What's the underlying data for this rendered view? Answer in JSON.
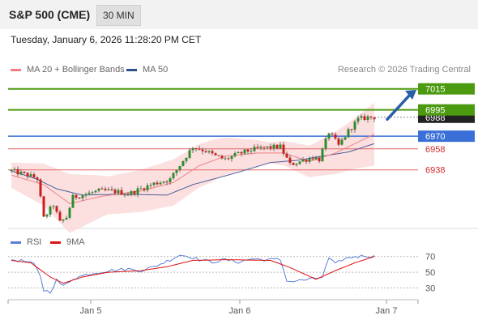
{
  "header": {
    "title": "S&P 500 (CME)",
    "interval": "30 MIN"
  },
  "timestamp": "Tuesday, January 6, 2026 11:28:20 PM CET",
  "legend": {
    "ma20": {
      "label": "MA 20 + Bollinger Bands",
      "color": "#f08080"
    },
    "ma50": {
      "label": "MA 50",
      "color": "#2f4f8f"
    }
  },
  "credit": "Research © 2026 Trading Central",
  "colors": {
    "up": "#2e8b2e",
    "down": "#cc1f1f",
    "resistance": "#4c9a10",
    "pivot": "#3a6fd8",
    "support": "#e06666",
    "band_fill": "#fbd5d5",
    "last_price_bg": "#222222",
    "arrow": "#2a5fa8",
    "rsi": "#5b7fd8",
    "rsi_ma": "#dd1111"
  },
  "chart_data": {
    "type": "candlestick",
    "x_labels": [
      "Jan 5",
      "Jan 6",
      "Jan 7"
    ],
    "ylim": [
      6887,
      7024
    ],
    "levels": [
      {
        "value": 7015,
        "label": "7015",
        "type": "resistance"
      },
      {
        "value": 6995,
        "label": "6995",
        "type": "resistance"
      },
      {
        "value": 6970,
        "label": "6970",
        "type": "pivot"
      },
      {
        "value": 6958,
        "label": "6958",
        "type": "support"
      },
      {
        "value": 6938,
        "label": "6938",
        "type": "support"
      }
    ],
    "last_price": {
      "value": 6988,
      "label": "6988"
    },
    "anchors": [
      [
        0,
        6937
      ],
      [
        5,
        6933
      ],
      [
        8,
        6930
      ],
      [
        10,
        6892
      ],
      [
        13,
        6905
      ],
      [
        15,
        6888
      ],
      [
        17,
        6893
      ],
      [
        19,
        6912
      ],
      [
        23,
        6915
      ],
      [
        27,
        6918
      ],
      [
        30,
        6918
      ],
      [
        33,
        6917
      ],
      [
        36,
        6915
      ],
      [
        40,
        6920
      ],
      [
        44,
        6925
      ],
      [
        49,
        6929
      ],
      [
        53,
        6947
      ],
      [
        56,
        6960
      ],
      [
        60,
        6956
      ],
      [
        63,
        6951
      ],
      [
        66,
        6948
      ],
      [
        70,
        6953
      ],
      [
        74,
        6957
      ],
      [
        78,
        6959
      ],
      [
        83,
        6960
      ],
      [
        86,
        6943
      ],
      [
        89,
        6946
      ],
      [
        93,
        6950
      ],
      [
        95,
        6948
      ],
      [
        98,
        6974
      ],
      [
        101,
        6961
      ],
      [
        104,
        6975
      ],
      [
        107,
        6986
      ],
      [
        110,
        6988
      ],
      [
        112,
        6988
      ]
    ],
    "ma20": [
      [
        0,
        6933
      ],
      [
        10,
        6924
      ],
      [
        18,
        6906
      ],
      [
        28,
        6913
      ],
      [
        40,
        6918
      ],
      [
        50,
        6926
      ],
      [
        58,
        6942
      ],
      [
        66,
        6951
      ],
      [
        76,
        6954
      ],
      [
        84,
        6954
      ],
      [
        92,
        6946
      ],
      [
        100,
        6954
      ],
      [
        112,
        6972
      ]
    ],
    "ma50": [
      [
        0,
        6937
      ],
      [
        8,
        6929
      ],
      [
        14,
        6920
      ],
      [
        22,
        6914
      ],
      [
        34,
        6915
      ],
      [
        48,
        6914
      ],
      [
        56,
        6924
      ],
      [
        68,
        6934
      ],
      [
        80,
        6945
      ],
      [
        88,
        6947
      ],
      [
        96,
        6951
      ],
      [
        104,
        6955
      ],
      [
        112,
        6963
      ]
    ],
    "band_width": [
      [
        0,
        12
      ],
      [
        10,
        20
      ],
      [
        18,
        28
      ],
      [
        30,
        18
      ],
      [
        50,
        22
      ],
      [
        62,
        20
      ],
      [
        80,
        10
      ],
      [
        94,
        16
      ],
      [
        106,
        24
      ],
      [
        112,
        30
      ]
    ],
    "forecast": {
      "from_value": 6986,
      "to_value": 7014
    },
    "rsi": {
      "label": "RSI",
      "ma_label": "9MA",
      "levels": [
        70,
        50,
        30
      ],
      "ylim": [
        15,
        80
      ],
      "values": [
        [
          0,
          66
        ],
        [
          4,
          64
        ],
        [
          7,
          60
        ],
        [
          9,
          45
        ],
        [
          10,
          27
        ],
        [
          12,
          25
        ],
        [
          14,
          40
        ],
        [
          16,
          32
        ],
        [
          19,
          42
        ],
        [
          24,
          48
        ],
        [
          30,
          52
        ],
        [
          36,
          54
        ],
        [
          40,
          52
        ],
        [
          44,
          57
        ],
        [
          48,
          64
        ],
        [
          52,
          72
        ],
        [
          55,
          70
        ],
        [
          58,
          66
        ],
        [
          62,
          63
        ],
        [
          66,
          66
        ],
        [
          70,
          63
        ],
        [
          74,
          67
        ],
        [
          78,
          66
        ],
        [
          83,
          66
        ],
        [
          85,
          40
        ],
        [
          86,
          38
        ],
        [
          90,
          40
        ],
        [
          94,
          42
        ],
        [
          96,
          44
        ],
        [
          98,
          68
        ],
        [
          100,
          60
        ],
        [
          102,
          66
        ],
        [
          106,
          70
        ],
        [
          110,
          71
        ],
        [
          112,
          70
        ]
      ],
      "ma_values": [
        [
          0,
          65
        ],
        [
          6,
          62
        ],
        [
          12,
          44
        ],
        [
          16,
          36
        ],
        [
          22,
          44
        ],
        [
          30,
          50
        ],
        [
          40,
          52
        ],
        [
          48,
          57
        ],
        [
          56,
          65
        ],
        [
          66,
          66
        ],
        [
          80,
          65
        ],
        [
          86,
          56
        ],
        [
          94,
          41
        ],
        [
          100,
          52
        ],
        [
          106,
          62
        ],
        [
          112,
          70
        ]
      ]
    }
  },
  "rsi_legend": {
    "rsi": {
      "label": "RSI",
      "color": "#5b7fd8"
    },
    "ma": {
      "label": "9MA",
      "color": "#dd1111"
    }
  }
}
